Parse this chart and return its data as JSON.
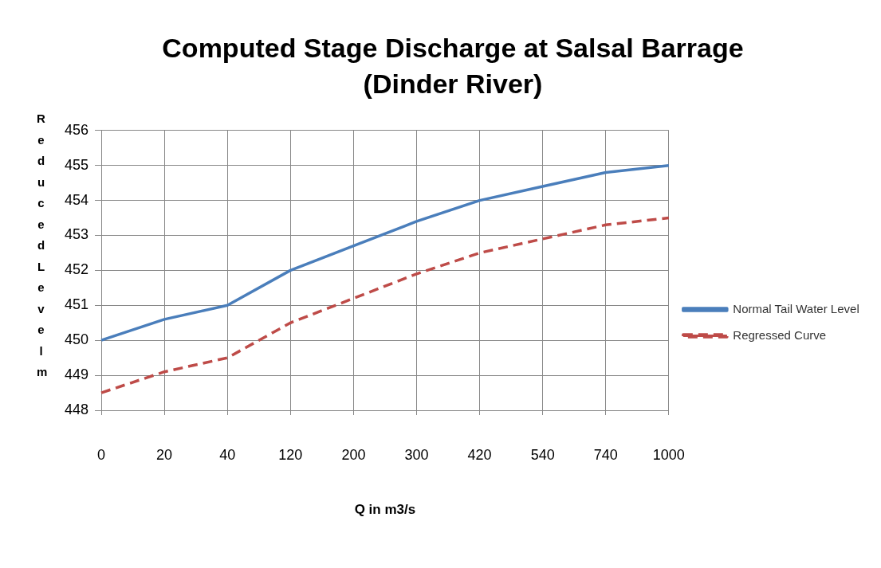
{
  "chart_data": {
    "type": "line",
    "title": "Computed Stage Discharge at Salsal Barrage (Dinder River)",
    "xlabel": "Q in m3/s",
    "ylabel": "Reduced Level m",
    "categories": [
      "0",
      "20",
      "40",
      "120",
      "200",
      "300",
      "420",
      "540",
      "740",
      "1000"
    ],
    "series": [
      {
        "name": "Normal Tail Water Level",
        "color": "#4a7ebb",
        "line_style": "solid",
        "values": [
          450,
          450.6,
          451,
          452,
          452.7,
          453.4,
          454,
          454.4,
          454.8,
          455
        ]
      },
      {
        "name": "Regressed Curve",
        "color": "#be4b48",
        "line_style": "dashed",
        "values": [
          448.5,
          449.1,
          449.5,
          450.5,
          451.2,
          451.9,
          452.5,
          452.9,
          453.3,
          453.5
        ]
      }
    ],
    "ylim": [
      448,
      456
    ],
    "yticks": [
      448,
      449,
      450,
      451,
      452,
      453,
      454,
      455,
      456
    ],
    "grid": true,
    "legend": "right",
    "marker": "none"
  }
}
